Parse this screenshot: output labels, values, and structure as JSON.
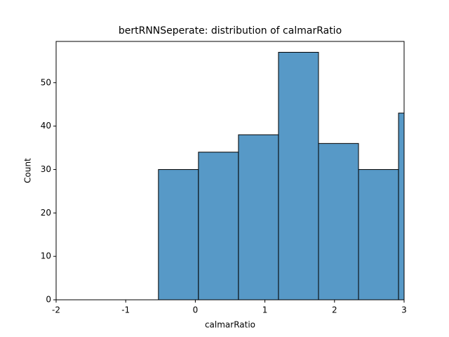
{
  "chart_data": {
    "type": "histogram",
    "title": "bertRNNSeperate: distribution of calmarRatio",
    "x_label": "calmarRatio",
    "y_label": "Count",
    "bins": [
      -0.53,
      0.045,
      0.62,
      1.195,
      1.77,
      2.345,
      2.92,
      3.495
    ],
    "values": [
      30,
      34,
      38,
      57,
      36,
      30,
      43
    ],
    "color": "#5799c7",
    "xlim": [
      -2,
      3
    ],
    "xticks": [
      -2,
      -1,
      0,
      1,
      2,
      3
    ],
    "ylim": [
      0,
      59.5
    ],
    "yticks": [
      0,
      10,
      20,
      30,
      40,
      50
    ]
  }
}
